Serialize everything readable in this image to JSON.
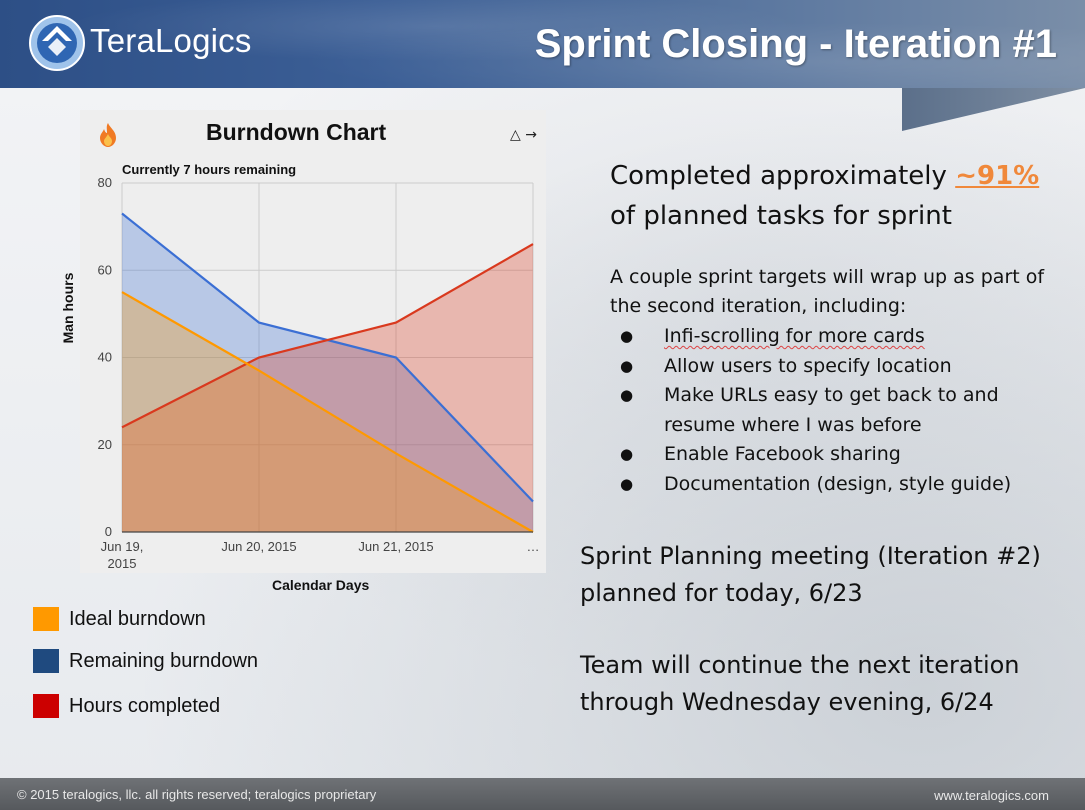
{
  "header": {
    "logo_text": "TeraLogics",
    "title": "Sprint Closing - Iteration #1"
  },
  "chart_data": {
    "type": "area",
    "title": "Burndown Chart",
    "subtitle": "Currently 7 hours remaining",
    "xlabel": "Calendar Days",
    "ylabel": "Man hours",
    "ylim": [
      0,
      80
    ],
    "yticks": [
      0,
      20,
      40,
      60,
      80
    ],
    "categories": [
      "Jun 19, 2015",
      "Jun 20, 2015",
      "Jun 21, 2015",
      "…"
    ],
    "grid": true,
    "series": [
      {
        "name": "Remaining burndown",
        "color": "#3b6fd4",
        "values": [
          73,
          48,
          40,
          7
        ],
        "filled": true
      },
      {
        "name": "Hours completed",
        "color": "#d9391e",
        "values": [
          24,
          40,
          48,
          66
        ],
        "filled": true
      },
      {
        "name": "Ideal burndown",
        "color": "#ff9900",
        "values": [
          55,
          37,
          18,
          0
        ],
        "filled": true
      }
    ]
  },
  "legend": [
    {
      "label": "Ideal burndown",
      "color": "#ff9900"
    },
    {
      "label": "Remaining burndown",
      "color": "#1f4a7f"
    },
    {
      "label": "Hours completed",
      "color": "#cc0000"
    }
  ],
  "content": {
    "headline_pre": "Completed approximately ",
    "headline_pct": "~91%",
    "headline_post": "of planned tasks for sprint",
    "intro": "A couple sprint targets will wrap up as part of the second iteration, including:",
    "bullets": [
      "Infi-scrolling for more cards",
      "Allow users to specify location",
      "Make URLs easy to get back to and resume where I was before",
      "Enable Facebook sharing",
      "Documentation (design, style guide)"
    ],
    "meeting": "Sprint Planning meeting (Iteration #2) planned for today, 6/23",
    "team": "Team will continue the next iteration through Wednesday evening, 6/24"
  },
  "footer": {
    "left": "© 2015 teralogics, llc. all rights reserved; teralogics proprietary",
    "right": "www.teralogics.com"
  },
  "icons": [
    "logo-icon",
    "flame-icon",
    "warning-icon",
    "arrow-right-icon"
  ]
}
